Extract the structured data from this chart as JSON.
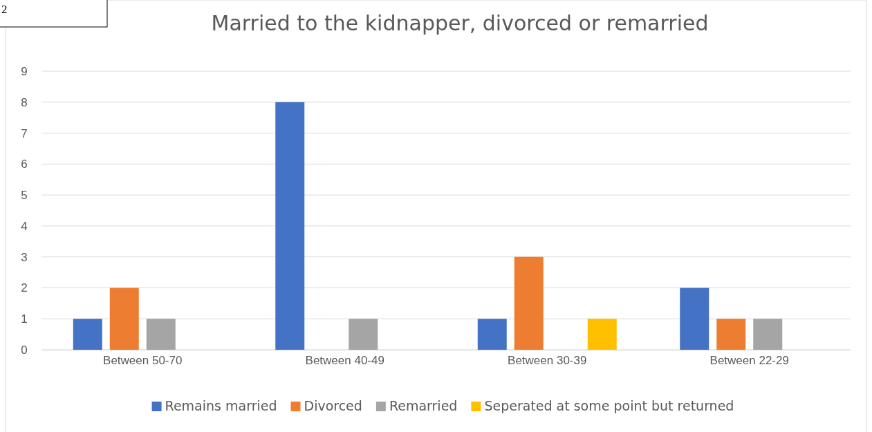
{
  "chart_data": {
    "type": "bar",
    "title": "Married to the kidnapper, divorced or remarried",
    "categories": [
      "Between 50-70",
      "Between 40-49",
      "Between 30-39",
      "Between 22-29"
    ],
    "series": [
      {
        "name": "Remains married",
        "color": "#4472c4",
        "values": [
          1,
          8,
          1,
          2
        ]
      },
      {
        "name": "Divorced",
        "color": "#ed7d31",
        "values": [
          2,
          0,
          3,
          1
        ]
      },
      {
        "name": "Remarried",
        "color": "#a5a5a5",
        "values": [
          1,
          1,
          0,
          1
        ]
      },
      {
        "name": "Seperated at some point but returned",
        "color": "#ffc000",
        "values": [
          0,
          0,
          1,
          0
        ]
      }
    ],
    "ylim": [
      0,
      9
    ],
    "yticks": [
      0,
      1,
      2,
      3,
      4,
      5,
      6,
      7,
      8,
      9
    ],
    "grid": "y",
    "legend": "bottom",
    "annotations": [
      "2"
    ]
  }
}
